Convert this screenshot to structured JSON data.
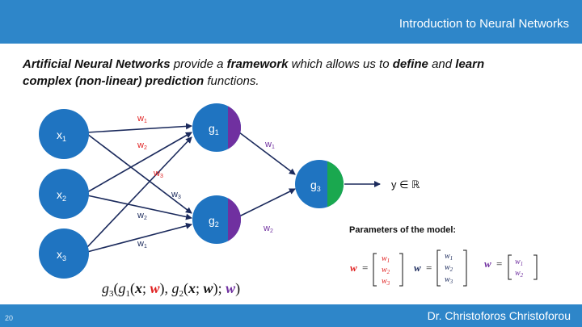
{
  "header": {
    "title": "Introduction to Neural Networks"
  },
  "intro": {
    "t1": "Artificial Neural Networks",
    "t2": " provide a ",
    "t3": "framework",
    "t4": " which allows us to ",
    "t5": "define",
    "t6": " and ",
    "t7": "learn",
    "t8": "complex (non-linear) prediction",
    "t9": "  functions."
  },
  "nodes": {
    "x1": "x",
    "x1_sub": "1",
    "x2": "x",
    "x2_sub": "2",
    "x3": "x",
    "x3_sub": "3",
    "g1": "g",
    "g1_sub": "1",
    "g2": "g",
    "g2_sub": "2",
    "g3": "g",
    "g3_sub": "3"
  },
  "weights": {
    "w1_top": "w",
    "w1_top_sub": "1",
    "w2_top": "w",
    "w2_top_sub": "2",
    "w3_top": "w",
    "w3_top_sub": "3",
    "w3_bottom": "w",
    "w3_bottom_sub": "3",
    "w2_bottom": "w",
    "w2_bottom_sub": "2",
    "w1_bottom": "w",
    "w1_bottom_sub": "1",
    "w1_out": "w",
    "w1_out_sub": "1",
    "w2_out": "w",
    "w2_out_sub": "2"
  },
  "output_label": "y ∈  ℝ",
  "formula": {
    "g3": "g",
    "g3_sub": "3",
    "open1": "(",
    "g1": "g",
    "g1_sub": "1",
    "args1": "(",
    "x": "x",
    "semi": "; ",
    "w": "w",
    "close": ")",
    "comma": ", ",
    "g2": "g",
    "g2_sub": "2",
    "args2": "(",
    "x2": "x",
    "semi2": "; ",
    "w2": "w",
    "close2": ")",
    "semi3": "; ",
    "w3": "w",
    "close3": ")"
  },
  "params": {
    "title": "Parameters of the model:",
    "w": "w",
    "eq": "=",
    "m1": [
      "w",
      "w",
      "w"
    ],
    "m1_sub": [
      "1",
      "2",
      "3"
    ],
    "m2": [
      "w",
      "w",
      "w"
    ],
    "m2_sub": [
      "1",
      "2",
      "3"
    ],
    "m3": [
      "w",
      "w"
    ],
    "m3_sub": [
      "1",
      "2"
    ]
  },
  "footer": {
    "author": "Dr. Christoforos Christoforou",
    "page": "20"
  },
  "colors": {
    "bar": "#2e86c9",
    "node": "#1f74c1",
    "edge": "#1b2a5c",
    "red": "#e02020",
    "purple": "#7030a0",
    "green": "#1aa84f"
  }
}
